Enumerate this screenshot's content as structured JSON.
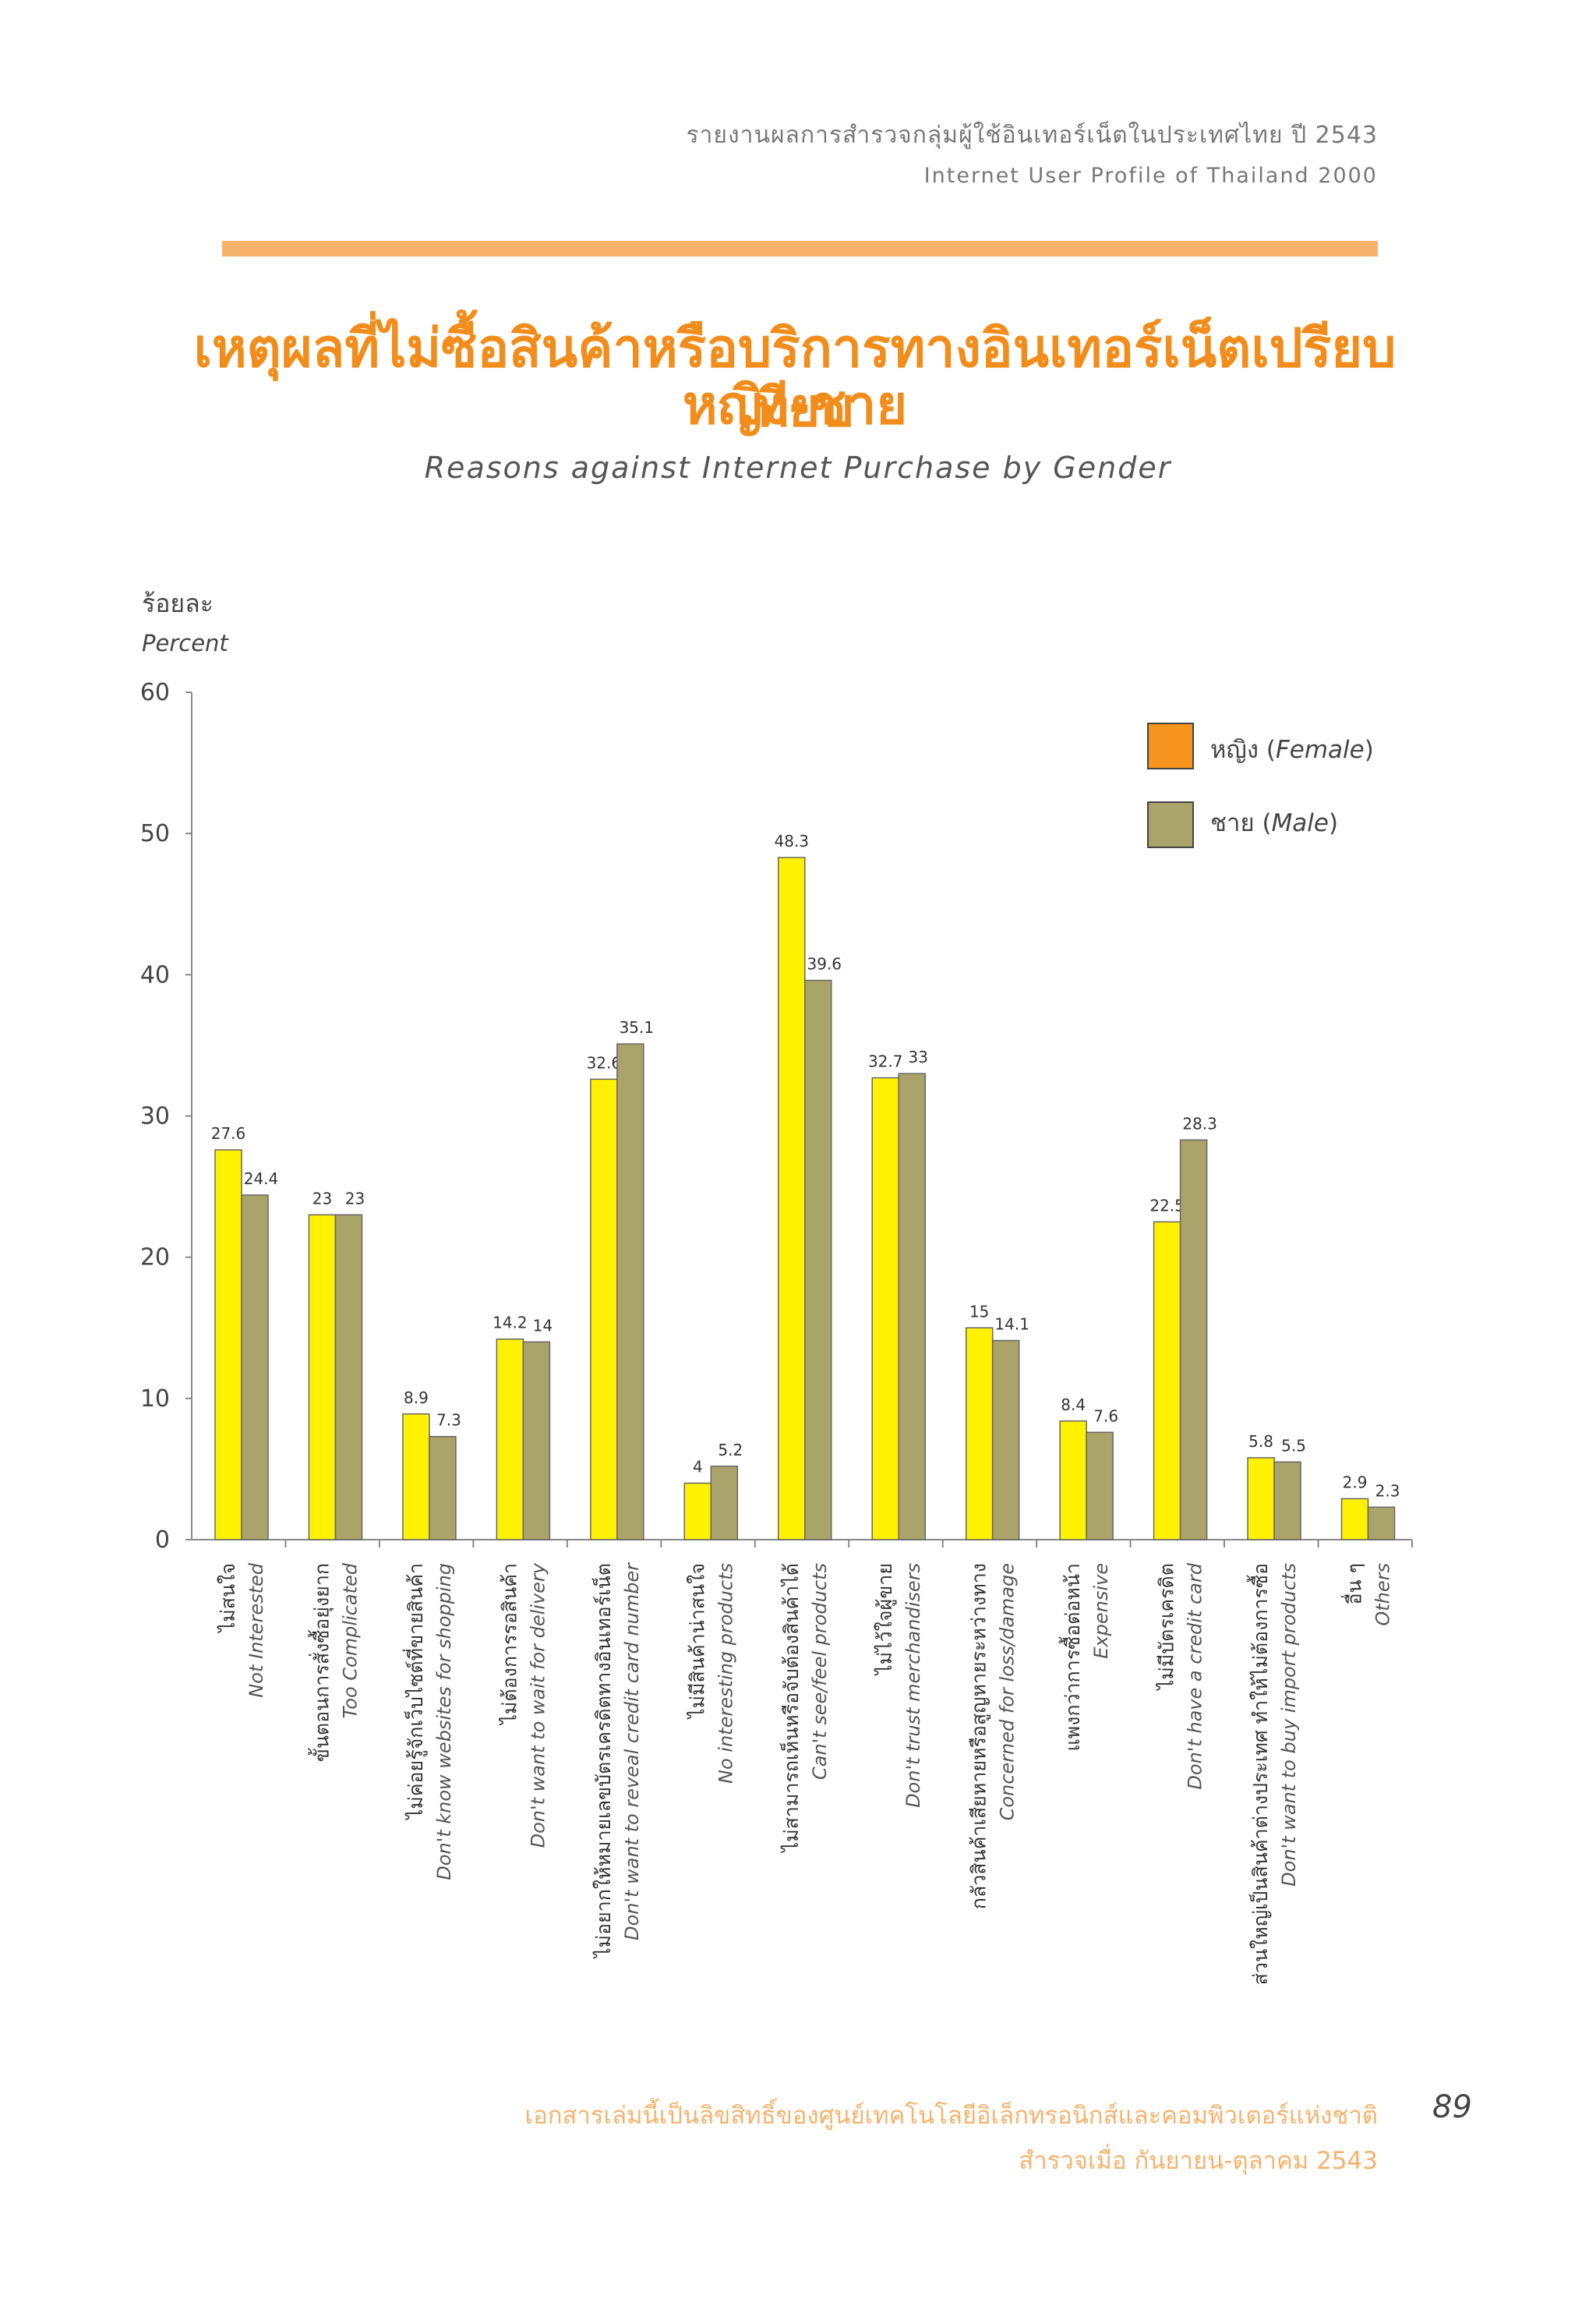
{
  "header": {
    "thai": "รายงานผลการสำรวจกลุ่มผู้ใช้อินเทอร์เน็ตในประเทศไทย ปี 2543",
    "english": "Internet User Profile of Thailand 2000"
  },
  "title": {
    "thai_line1": "เหตุผลที่ไม่ซื้อสินค้าหรือบริการทางอินเทอร์เน็ตเปรียบเทียบ",
    "thai_line2": "หญิง-ชาย",
    "english": "Reasons against Internet Purchase by Gender"
  },
  "footer": {
    "line1": "เอกสารเล่มนี้เป็นลิขสิทธิ์ของศูนย์เทคโนโลยีอิเล็กทรอนิกส์และคอมพิวเตอร์แห่งชาติ",
    "line2": "สำรวจเมื่อ กันยายน-ตุลาคม 2543",
    "page_number": "89"
  },
  "colors": {
    "female": "#fff200",
    "male": "#aaa36a",
    "legend_female": "#f7941d",
    "title": "#f28c1b",
    "rule": "#f6b26b"
  },
  "chart_data": {
    "type": "bar",
    "title": "Reasons against Internet Purchase by Gender",
    "ylabel_thai": "ร้อยละ",
    "ylabel": "Percent",
    "ylim": [
      0,
      60
    ],
    "yticks": [
      0,
      10,
      20,
      30,
      40,
      50,
      60
    ],
    "grid": false,
    "legend_position": "top-right",
    "categories": [
      {
        "thai": "ไม่สนใจ",
        "english": "Not Interested"
      },
      {
        "thai": "ขั้นตอนการสั่งซื้อยุ่งยาก",
        "english": "Too Complicated"
      },
      {
        "thai": "ไม่ค่อยรู้จักเว็บไซต์ที่ขายสินค้า",
        "english": "Don't know websites for shopping"
      },
      {
        "thai": "ไม่ต้องการรอสินค้า",
        "english": "Don't want to wait for delivery"
      },
      {
        "thai": "ไม่อยากให้หมายเลขบัตรเครดิตทางอินเทอร์เน็ต",
        "english": "Don't want to reveal credit card number"
      },
      {
        "thai": "ไม่มีสินค้าน่าสนใจ",
        "english": "No interesting products"
      },
      {
        "thai": "ไม่สามารถเห็นหรือจับต้องสินค้าได้",
        "english": "Can't see/feel products"
      },
      {
        "thai": "ไม่ไว้ใจผู้ขาย",
        "english": "Don't trust merchandisers"
      },
      {
        "thai": "กลัวสินค้าเสียหายหรือสูญหายระหว่างทาง",
        "english": "Concerned for loss/damage"
      },
      {
        "thai": "แพงกว่าการซื้อต่อหน้า",
        "english": "Expensive"
      },
      {
        "thai": "ไม่มีบัตรเครดิต",
        "english": "Don't have a credit card"
      },
      {
        "thai": "ส่วนใหญ่เป็นสินค้าต่างประเทศ ทำให้ไม่ต้องการซื้อ",
        "english": "Don't want to buy import products"
      },
      {
        "thai": "อื่น ๆ",
        "english": "Others"
      }
    ],
    "series": [
      {
        "name": "หญิง (Female)",
        "name_thai": "หญิง",
        "name_en": "Female",
        "values": [
          27.6,
          23,
          8.9,
          14.2,
          32.6,
          4,
          48.3,
          32.7,
          15,
          8.4,
          22.5,
          5.8,
          2.9
        ],
        "labels": [
          "27.6",
          "23",
          "8.9",
          "14.2",
          "32.6",
          "4",
          "48.3",
          "32.7",
          "15",
          "8.4",
          "22.5",
          "5.8",
          "2.9"
        ]
      },
      {
        "name": "ชาย (Male)",
        "name_thai": "ชาย",
        "name_en": "Male",
        "values": [
          24.4,
          23,
          7.3,
          14,
          35.1,
          5.2,
          39.6,
          33,
          14.1,
          7.6,
          28.3,
          5.5,
          2.3
        ],
        "labels": [
          "24.4",
          "23",
          "7.3",
          "14",
          "35.1",
          "5.2",
          "39.6",
          "33",
          "14.1",
          "7.6",
          "28.3",
          "5.5",
          "2.3"
        ]
      }
    ]
  }
}
